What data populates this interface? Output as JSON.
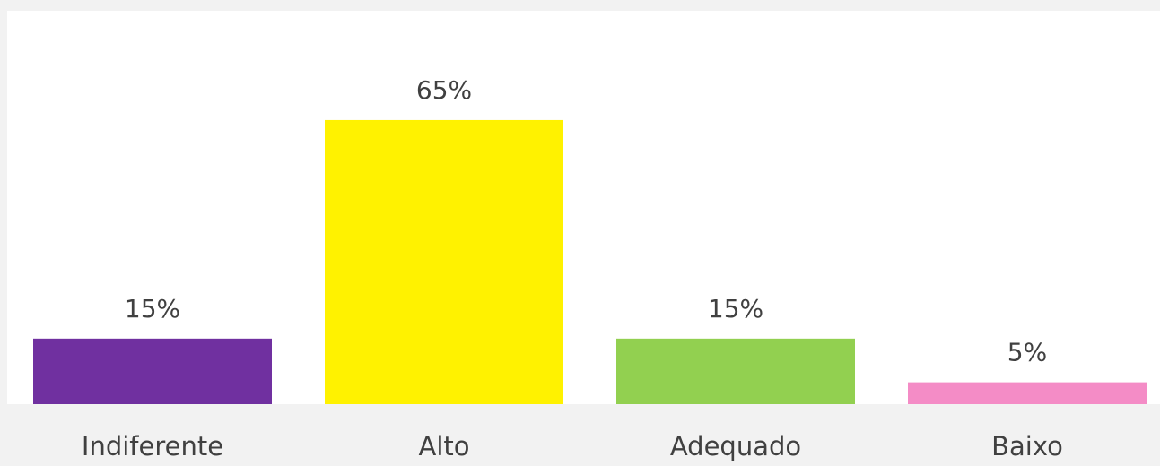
{
  "chart_data": {
    "type": "bar",
    "categories": [
      "Indiferente",
      "Alto",
      "Adequado",
      "Baixo"
    ],
    "values": [
      15,
      65,
      15,
      5
    ],
    "value_labels": [
      "15%",
      "65%",
      "15%",
      "5%"
    ],
    "colors": [
      "#7030a0",
      "#fff200",
      "#92d050",
      "#f48cc6"
    ],
    "ylim": [
      0,
      90
    ]
  }
}
